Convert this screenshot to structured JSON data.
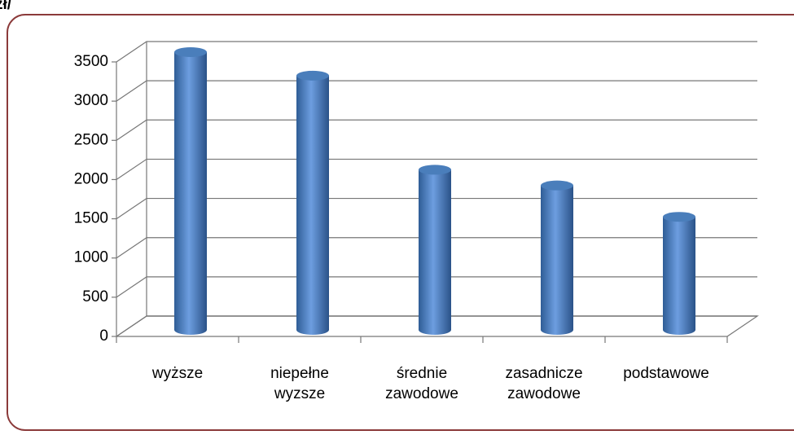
{
  "chart_data": {
    "type": "bar3d",
    "title": "zł/",
    "categories": [
      "wyższe",
      "niepełne wyzsze",
      "średnie zawodowe",
      "zasadnicze zawodowe",
      "podstawowe"
    ],
    "values": [
      3500,
      3200,
      2000,
      1800,
      1400
    ],
    "color": "#4a7ebb",
    "ylim": [
      0,
      3500
    ],
    "yticks": [
      0,
      500,
      1000,
      1500,
      2000,
      2500,
      3000,
      3500
    ],
    "grid": true
  }
}
